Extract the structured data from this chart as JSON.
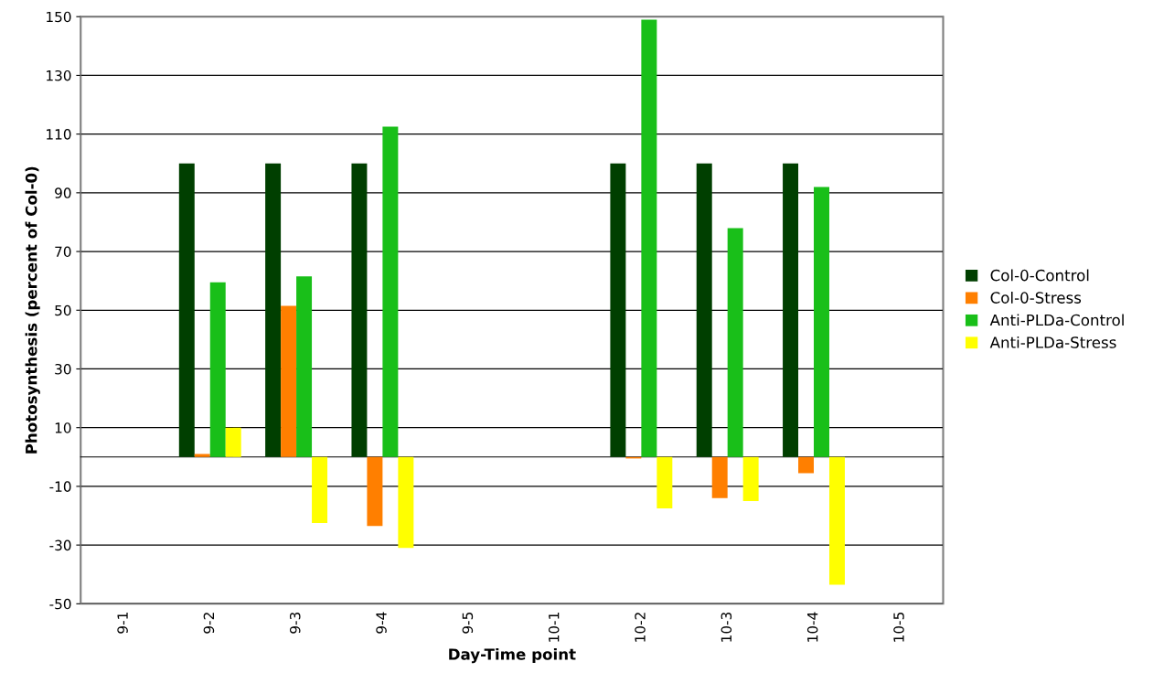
{
  "chart_data": {
    "type": "bar",
    "xlabel": "Day-Time point",
    "ylabel": "Photosynthesis (percent of Col-0)",
    "categories": [
      "9-1",
      "9-2",
      "9-3",
      "9-4",
      "9-5",
      "10-1",
      "10-2",
      "10-3",
      "10-4",
      "10-5"
    ],
    "series": [
      {
        "name": "Col-0-Control",
        "color": "#003f00",
        "values": [
          null,
          100,
          100,
          100,
          null,
          null,
          100,
          100,
          100,
          null
        ]
      },
      {
        "name": "Col-0-Stress",
        "color": "#ff7f00",
        "values": [
          null,
          1,
          51.5,
          -23.5,
          null,
          null,
          -0.5,
          -14,
          -5.5,
          null
        ]
      },
      {
        "name": "Anti-PLDa-Control",
        "color": "#19bf19",
        "values": [
          null,
          59.5,
          61.5,
          112.5,
          null,
          null,
          149,
          78,
          92,
          null
        ]
      },
      {
        "name": "Anti-PLDa-Stress",
        "color": "#ffff00",
        "values": [
          null,
          10,
          -22.5,
          -31,
          null,
          null,
          -17.5,
          -15,
          -43.5,
          null
        ]
      }
    ],
    "ylim": [
      -50,
      150
    ],
    "yticks": [
      -50,
      -30,
      -10,
      10,
      30,
      50,
      70,
      90,
      110,
      130,
      150
    ],
    "grid": "y",
    "legend": "right"
  }
}
